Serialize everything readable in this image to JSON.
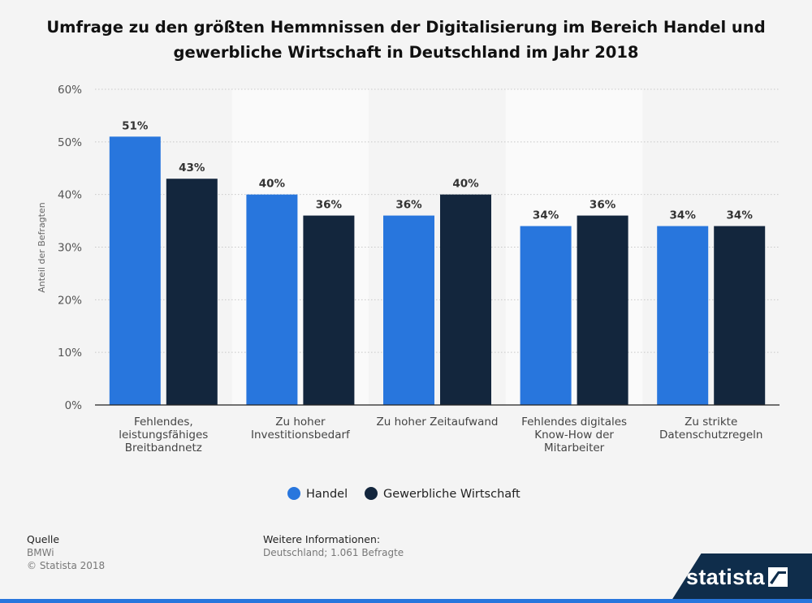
{
  "title": "Umfrage zu den größten Hemmnissen der Digitalisierung im Bereich Handel und gewerbliche Wirtschaft in Deutschland im Jahr 2018",
  "chart_data": {
    "type": "bar",
    "title": "Umfrage zu den größten Hemmnissen der Digitalisierung im Bereich Handel und gewerbliche Wirtschaft in Deutschland im Jahr 2018",
    "categories": [
      "Fehlendes, leistungsfähiges Breitbandnetz",
      "Zu hoher Investitionsbedarf",
      "Zu hoher Zeitaufwand",
      "Fehlendes digitales Know-How der Mitarbeiter",
      "Zu strikte Datenschutzregeln"
    ],
    "category_lines": [
      [
        "Fehlendes,",
        "leistungsfähiges",
        "Breitbandnetz"
      ],
      [
        "Zu hoher",
        "Investitionsbedarf"
      ],
      [
        "Zu hoher Zeitaufwand"
      ],
      [
        "Fehlendes digitales",
        "Know-How der",
        "Mitarbeiter"
      ],
      [
        "Zu strikte",
        "Datenschutzregeln"
      ]
    ],
    "series": [
      {
        "name": "Handel",
        "values": [
          51,
          40,
          36,
          34,
          34
        ],
        "color": "#2876dd"
      },
      {
        "name": "Gewerbliche Wirtschaft",
        "values": [
          43,
          36,
          40,
          36,
          34
        ],
        "color": "#13263d"
      }
    ],
    "value_labels": [
      [
        "51%",
        "40%",
        "36%",
        "34%",
        "34%"
      ],
      [
        "43%",
        "36%",
        "40%",
        "36%",
        "34%"
      ]
    ],
    "ylabel": "Anteil der Befragten",
    "ylim": [
      0,
      60
    ],
    "yticks": [
      0,
      10,
      20,
      30,
      40,
      50,
      60
    ],
    "ytick_labels": [
      "0%",
      "10%",
      "20%",
      "30%",
      "40%",
      "50%",
      "60%"
    ],
    "grid": true,
    "legend_position": "bottom"
  },
  "footer": {
    "source_heading": "Quelle",
    "source_lines": [
      "BMWi",
      "© Statista 2018"
    ],
    "info_heading": "Weitere Informationen:",
    "info_lines": [
      "Deutschland; 1.061 Befragte"
    ]
  },
  "brand": "statista",
  "colors": {
    "accent": "#2876dd",
    "dark": "#13263d",
    "brand_bg": "#0f2d4b"
  }
}
